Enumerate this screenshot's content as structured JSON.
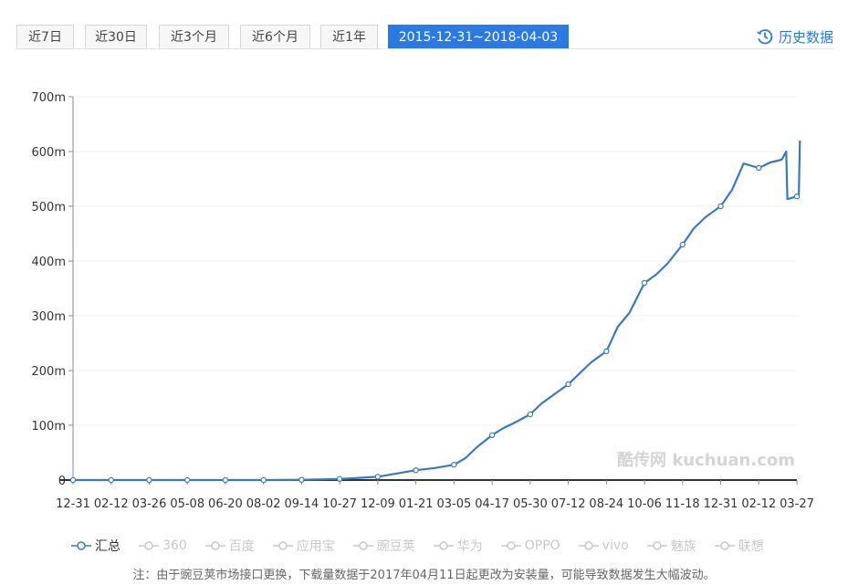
{
  "tabs": [
    {
      "label": "近7日",
      "active": false
    },
    {
      "label": "近30日",
      "active": false
    },
    {
      "label": "近3个月",
      "active": false
    },
    {
      "label": "近6个月",
      "active": false
    },
    {
      "label": "近1年",
      "active": false
    },
    {
      "label": "2015-12-31~2018-04-03",
      "active": true
    }
  ],
  "history": {
    "label": "历史数据",
    "icon": "history-clock-icon"
  },
  "colors": {
    "accent": "#2a7ae2",
    "series": "#3a78c2",
    "inactive_legend": "#c8c8c8"
  },
  "chart_data": {
    "type": "line",
    "title": "",
    "xlabel": "",
    "ylabel": "",
    "ylim": [
      0,
      700000000
    ],
    "yticks": [
      {
        "value": 0,
        "label": "0"
      },
      {
        "value": 100000000,
        "label": "100m"
      },
      {
        "value": 200000000,
        "label": "200m"
      },
      {
        "value": 300000000,
        "label": "300m"
      },
      {
        "value": 400000000,
        "label": "400m"
      },
      {
        "value": 500000000,
        "label": "500m"
      },
      {
        "value": 600000000,
        "label": "600m"
      },
      {
        "value": 700000000,
        "label": "700m"
      }
    ],
    "xticks": [
      "12-31",
      "02-12",
      "03-26",
      "05-08",
      "06-20",
      "08-02",
      "09-14",
      "10-27",
      "12-09",
      "01-21",
      "03-05",
      "04-17",
      "05-30",
      "07-12",
      "08-24",
      "10-06",
      "11-18",
      "12-31",
      "02-12",
      "03-27"
    ],
    "grid": true,
    "legend_position": "bottom",
    "watermark": "酷传网 kuchuan.com",
    "series": [
      {
        "name": "汇总",
        "active": true,
        "x_index": [
          0,
          1,
          2,
          3,
          4,
          5,
          6,
          7,
          7.5,
          8,
          8.5,
          9,
          9.5,
          10,
          10.3,
          10.6,
          11,
          11.3,
          11.6,
          12,
          12.3,
          12.6,
          13,
          13.3,
          13.6,
          14,
          14.3,
          14.6,
          15,
          15.3,
          15.6,
          16,
          16.3,
          16.6,
          17,
          17.3,
          17.6,
          18,
          18.3,
          18.6,
          18.72,
          18.75,
          19,
          19.05,
          19.08
        ],
        "values": [
          0,
          0,
          0,
          0,
          0,
          0,
          500000,
          2000000,
          4000000,
          6000000,
          12000000,
          18000000,
          22000000,
          28000000,
          40000000,
          60000000,
          82000000,
          95000000,
          105000000,
          120000000,
          140000000,
          155000000,
          175000000,
          195000000,
          215000000,
          235000000,
          280000000,
          305000000,
          360000000,
          375000000,
          395000000,
          430000000,
          460000000,
          480000000,
          500000000,
          530000000,
          578000000,
          570000000,
          580000000,
          585000000,
          600000000,
          513000000,
          518000000,
          520000000,
          620000000
        ]
      },
      {
        "name": "360",
        "active": false
      },
      {
        "name": "百度",
        "active": false
      },
      {
        "name": "应用宝",
        "active": false
      },
      {
        "name": "豌豆荚",
        "active": false
      },
      {
        "name": "华为",
        "active": false
      },
      {
        "name": "OPPO",
        "active": false
      },
      {
        "name": "vivo",
        "active": false
      },
      {
        "name": "魅族",
        "active": false
      },
      {
        "name": "联想",
        "active": false
      }
    ]
  },
  "note": "注：由于豌豆荚市场接口更换，下载量数据于2017年04月11日起更改为安装量，可能导致数据发生大幅波动。"
}
